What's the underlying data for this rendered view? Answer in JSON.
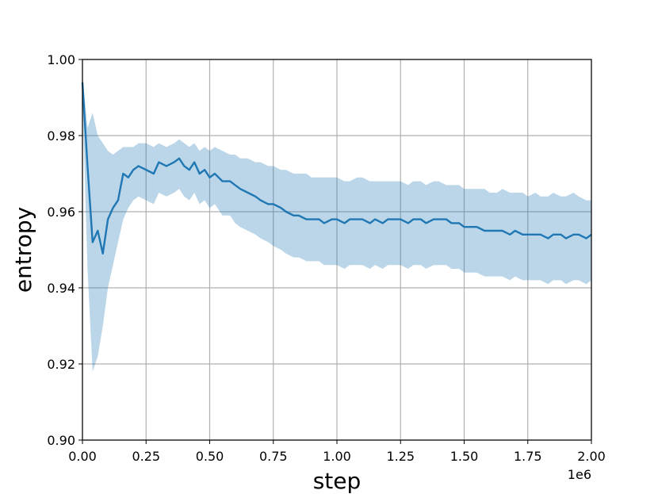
{
  "chart_data": {
    "type": "line",
    "title": "",
    "xlabel": "step",
    "ylabel": "entropy",
    "x_offset_label": "1e6",
    "xlim": [
      0,
      2.0
    ],
    "ylim": [
      0.9,
      1.0
    ],
    "grid": true,
    "x_ticks": [
      0.0,
      0.25,
      0.5,
      0.75,
      1.0,
      1.25,
      1.5,
      1.75,
      2.0
    ],
    "x_tick_labels": [
      "0.00",
      "0.25",
      "0.50",
      "0.75",
      "1.00",
      "1.25",
      "1.50",
      "1.75",
      "2.00"
    ],
    "y_ticks": [
      0.9,
      0.92,
      0.94,
      0.96,
      0.98,
      1.0
    ],
    "y_tick_labels": [
      "0.90",
      "0.92",
      "0.94",
      "0.96",
      "0.98",
      "1.00"
    ],
    "colors": {
      "line": "#1f77b4",
      "band": "#1f77b4",
      "band_opacity": 0.3
    },
    "series": [
      {
        "x": [
          0.0,
          0.02,
          0.04,
          0.06,
          0.08,
          0.1,
          0.12,
          0.14,
          0.16,
          0.18,
          0.2,
          0.22,
          0.25,
          0.28,
          0.3,
          0.33,
          0.36,
          0.38,
          0.4,
          0.42,
          0.44,
          0.46,
          0.48,
          0.5,
          0.52,
          0.55,
          0.58,
          0.6,
          0.62,
          0.65,
          0.68,
          0.7,
          0.73,
          0.75,
          0.78,
          0.8,
          0.83,
          0.85,
          0.88,
          0.9,
          0.93,
          0.95,
          0.98,
          1.0,
          1.03,
          1.05,
          1.08,
          1.1,
          1.13,
          1.15,
          1.18,
          1.2,
          1.23,
          1.25,
          1.28,
          1.3,
          1.33,
          1.35,
          1.38,
          1.4,
          1.43,
          1.45,
          1.48,
          1.5,
          1.53,
          1.55,
          1.58,
          1.6,
          1.63,
          1.65,
          1.68,
          1.7,
          1.73,
          1.75,
          1.78,
          1.8,
          1.83,
          1.85,
          1.88,
          1.9,
          1.93,
          1.95,
          1.98,
          2.0
        ],
        "mean": [
          0.994,
          0.972,
          0.952,
          0.955,
          0.949,
          0.958,
          0.961,
          0.963,
          0.97,
          0.969,
          0.971,
          0.972,
          0.971,
          0.97,
          0.973,
          0.972,
          0.973,
          0.974,
          0.972,
          0.971,
          0.973,
          0.97,
          0.971,
          0.969,
          0.97,
          0.968,
          0.968,
          0.967,
          0.966,
          0.965,
          0.964,
          0.963,
          0.962,
          0.962,
          0.961,
          0.96,
          0.959,
          0.959,
          0.958,
          0.958,
          0.958,
          0.957,
          0.958,
          0.958,
          0.957,
          0.958,
          0.958,
          0.958,
          0.957,
          0.958,
          0.957,
          0.958,
          0.958,
          0.958,
          0.957,
          0.958,
          0.958,
          0.957,
          0.958,
          0.958,
          0.958,
          0.957,
          0.957,
          0.956,
          0.956,
          0.956,
          0.955,
          0.955,
          0.955,
          0.955,
          0.954,
          0.955,
          0.954,
          0.954,
          0.954,
          0.954,
          0.953,
          0.954,
          0.954,
          0.953,
          0.954,
          0.954,
          0.953,
          0.954
        ],
        "upper": [
          0.996,
          0.982,
          0.986,
          0.98,
          0.978,
          0.976,
          0.975,
          0.976,
          0.977,
          0.977,
          0.977,
          0.978,
          0.978,
          0.977,
          0.978,
          0.977,
          0.978,
          0.979,
          0.978,
          0.977,
          0.978,
          0.976,
          0.977,
          0.976,
          0.977,
          0.976,
          0.975,
          0.975,
          0.974,
          0.974,
          0.973,
          0.973,
          0.972,
          0.972,
          0.971,
          0.971,
          0.97,
          0.97,
          0.97,
          0.969,
          0.969,
          0.969,
          0.969,
          0.969,
          0.968,
          0.968,
          0.969,
          0.969,
          0.968,
          0.968,
          0.968,
          0.968,
          0.968,
          0.968,
          0.967,
          0.968,
          0.968,
          0.967,
          0.968,
          0.968,
          0.967,
          0.967,
          0.967,
          0.966,
          0.966,
          0.966,
          0.966,
          0.965,
          0.965,
          0.966,
          0.965,
          0.965,
          0.965,
          0.964,
          0.965,
          0.964,
          0.964,
          0.965,
          0.964,
          0.964,
          0.965,
          0.964,
          0.963,
          0.963
        ],
        "lower": [
          0.99,
          0.945,
          0.918,
          0.922,
          0.93,
          0.94,
          0.946,
          0.952,
          0.958,
          0.961,
          0.963,
          0.964,
          0.963,
          0.962,
          0.965,
          0.964,
          0.965,
          0.966,
          0.964,
          0.963,
          0.965,
          0.962,
          0.963,
          0.961,
          0.962,
          0.959,
          0.959,
          0.957,
          0.956,
          0.955,
          0.954,
          0.953,
          0.952,
          0.951,
          0.95,
          0.949,
          0.948,
          0.948,
          0.947,
          0.947,
          0.947,
          0.946,
          0.946,
          0.946,
          0.945,
          0.946,
          0.946,
          0.946,
          0.945,
          0.946,
          0.945,
          0.946,
          0.946,
          0.946,
          0.945,
          0.946,
          0.946,
          0.945,
          0.946,
          0.946,
          0.946,
          0.945,
          0.945,
          0.944,
          0.944,
          0.944,
          0.943,
          0.943,
          0.943,
          0.943,
          0.942,
          0.943,
          0.942,
          0.942,
          0.942,
          0.942,
          0.941,
          0.942,
          0.942,
          0.941,
          0.942,
          0.942,
          0.941,
          0.942
        ]
      }
    ]
  }
}
